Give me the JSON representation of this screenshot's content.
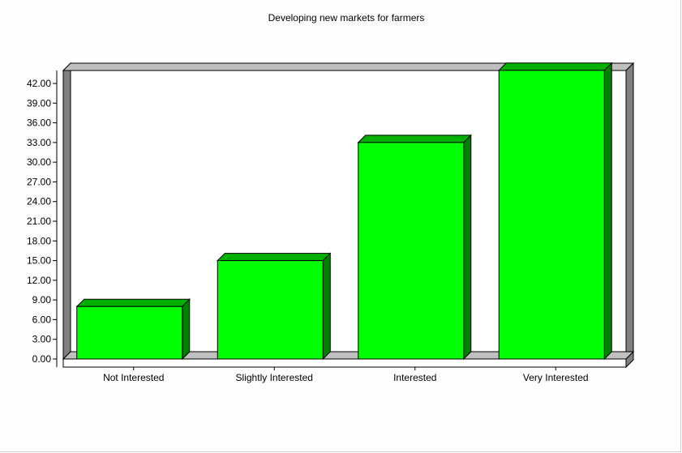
{
  "chart_data": {
    "type": "bar",
    "title": "Developing new markets for farmers",
    "xlabel": "",
    "ylabel": "",
    "categories": [
      "Not Interested",
      "Slightly Interested",
      "Interested",
      "Very Interested"
    ],
    "values": [
      8,
      15,
      33,
      44
    ],
    "ylim": [
      0,
      42
    ],
    "yticks": [
      "0.00",
      "3.00",
      "6.00",
      "9.00",
      "12.00",
      "15.00",
      "18.00",
      "21.00",
      "24.00",
      "27.00",
      "30.00",
      "33.00",
      "36.00",
      "39.00",
      "42.00"
    ],
    "grid": false,
    "legend": "none",
    "colors": {
      "bar_front": "#00ff00",
      "bar_top": "#00b000",
      "bar_side": "#008000",
      "wall": "#c0c0c0",
      "wall_dark": "#808080",
      "plot_bg": "#ffffff"
    }
  }
}
